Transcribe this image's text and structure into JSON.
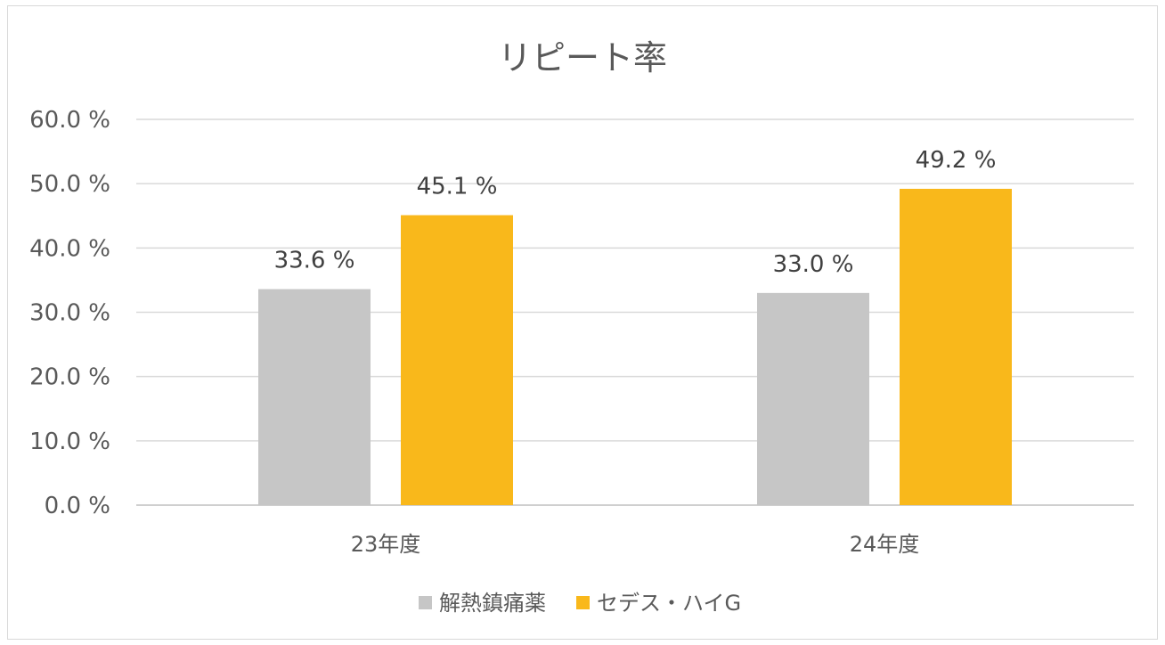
{
  "chart_data": {
    "type": "bar",
    "title": "リピート率",
    "categories": [
      "23年度",
      "24年度"
    ],
    "series": [
      {
        "name": "解熱鎮痛薬",
        "values": [
          33.6,
          33.0
        ],
        "color": "#c6c6c6",
        "labels": [
          "33.6 %",
          "33.0 %"
        ]
      },
      {
        "name": "セデス・ハイG",
        "values": [
          45.1,
          49.2
        ],
        "color": "#f9b81b",
        "labels": [
          "45.1 %",
          "49.2 %"
        ]
      }
    ],
    "ylim": [
      0,
      60
    ],
    "yticks": [
      0,
      10,
      20,
      30,
      40,
      50,
      60
    ],
    "ytick_labels": [
      "0.0 %",
      "10.0 %",
      "20.0 %",
      "30.0 %",
      "40.0 %",
      "50.0 %",
      "60.0 %"
    ],
    "grid": true,
    "legend": "bottom"
  }
}
